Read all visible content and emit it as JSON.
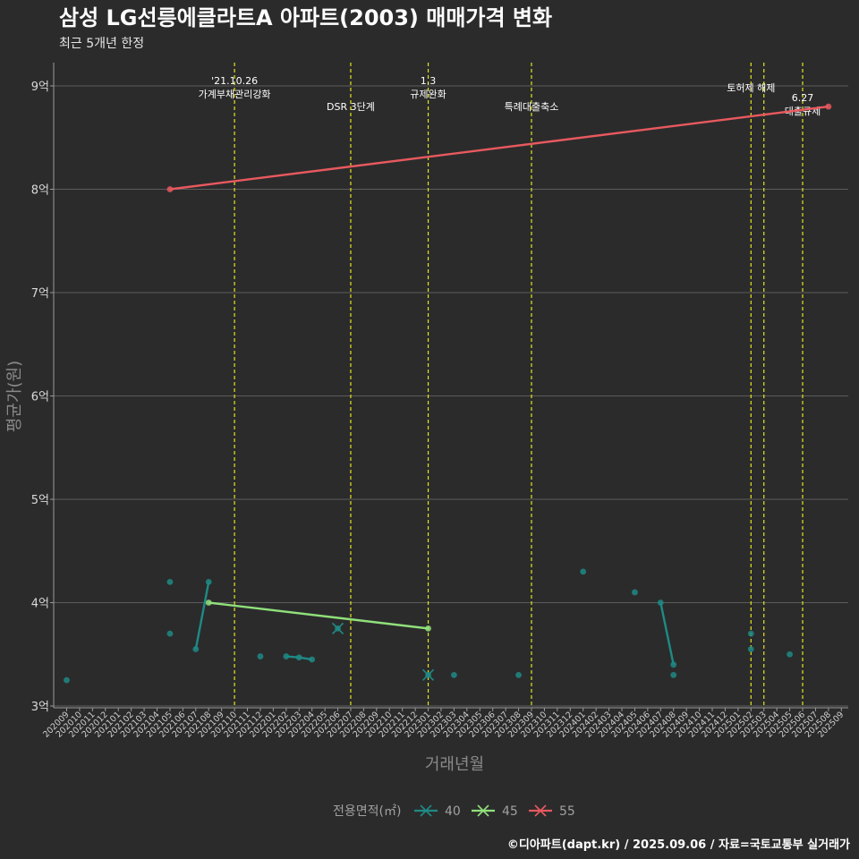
{
  "chart_data": {
    "type": "line",
    "title": "삼성 LG선릉에클라트A 아파트(2003) 매매가격 변화",
    "subtitle": "최근 5개년 한정",
    "xlabel": "거래년월",
    "ylabel": "평균가(원)",
    "caption": "©디아파트(dapt.kr) / 2025.09.06 / 자료=국토교통부 실거래가",
    "ylim": [
      3,
      9.2
    ],
    "y_ticks": [
      3,
      4,
      5,
      6,
      7,
      8,
      9
    ],
    "y_tick_labels": [
      "3억",
      "4억",
      "5억",
      "6억",
      "7억",
      "8억",
      "9억"
    ],
    "x_ticks": [
      "202009",
      "202010",
      "202011",
      "202012",
      "202101",
      "202102",
      "202103",
      "202104",
      "202105",
      "202106",
      "202107",
      "202108",
      "202109",
      "202110",
      "202111",
      "202112",
      "202201",
      "202202",
      "202203",
      "202204",
      "202205",
      "202206",
      "202207",
      "202208",
      "202209",
      "202210",
      "202211",
      "202212",
      "202301",
      "202302",
      "202303",
      "202304",
      "202305",
      "202306",
      "202307",
      "202308",
      "202309",
      "202310",
      "202311",
      "202312",
      "202401",
      "202402",
      "202403",
      "202404",
      "202405",
      "202406",
      "202407",
      "202408",
      "202409",
      "202410",
      "202411",
      "202412",
      "202501",
      "202502",
      "202503",
      "202504",
      "202505",
      "202506",
      "202507",
      "202508",
      "202509"
    ],
    "legend_title": "전용면적(㎡)",
    "series": [
      {
        "name": "40",
        "color": "#1f8a85",
        "points": [
          [
            0,
            3.25
          ],
          [
            8,
            4.2
          ],
          [
            8,
            3.7
          ],
          [
            10,
            3.55
          ],
          [
            11,
            4.2
          ],
          [
            15,
            3.48
          ],
          [
            17,
            3.48
          ],
          [
            18,
            3.47
          ],
          [
            19,
            3.45
          ],
          [
            21,
            3.75
          ],
          [
            28,
            3.3
          ],
          [
            30,
            3.3
          ],
          [
            35,
            3.3
          ],
          [
            40,
            4.3
          ],
          [
            44,
            4.1
          ],
          [
            46,
            4.0
          ],
          [
            47,
            3.4
          ],
          [
            47,
            3.3
          ],
          [
            53,
            3.7
          ],
          [
            53,
            3.55
          ],
          [
            56,
            3.5
          ]
        ],
        "lines": [
          [
            [
              10,
              3.55
            ],
            [
              11,
              4.2
            ]
          ],
          [
            [
              17,
              3.48
            ],
            [
              18,
              3.47
            ],
            [
              19,
              3.45
            ]
          ],
          [
            [
              46,
              4.0
            ],
            [
              47,
              3.4
            ]
          ]
        ],
        "cross_markers": [
          [
            21,
            3.75
          ],
          [
            28,
            3.3
          ]
        ]
      },
      {
        "name": "45",
        "color": "#90e07a",
        "points": [
          [
            11,
            4.0
          ],
          [
            28,
            3.75
          ]
        ],
        "lines": [
          [
            [
              11,
              4.0
            ],
            [
              28,
              3.75
            ]
          ]
        ],
        "cross_markers": []
      },
      {
        "name": "55",
        "color": "#e8595e",
        "points": [
          [
            8,
            8.0
          ],
          [
            59,
            8.8
          ]
        ],
        "lines": [
          [
            [
              8,
              8.0
            ],
            [
              59,
              8.8
            ]
          ]
        ],
        "cross_markers": []
      }
    ],
    "events": [
      {
        "x": 13,
        "label": "'21.10.26\n가계부채관리강화"
      },
      {
        "x": 22,
        "label": "DSR 3단계"
      },
      {
        "x": 28,
        "label": "1.3\n규제완화"
      },
      {
        "x": 36,
        "label": "특례대출축소"
      },
      {
        "x": 53,
        "label": "토허제 해제"
      },
      {
        "x": 54,
        "label": ""
      },
      {
        "x": 57,
        "label": "6.27\n대출규제"
      }
    ]
  }
}
